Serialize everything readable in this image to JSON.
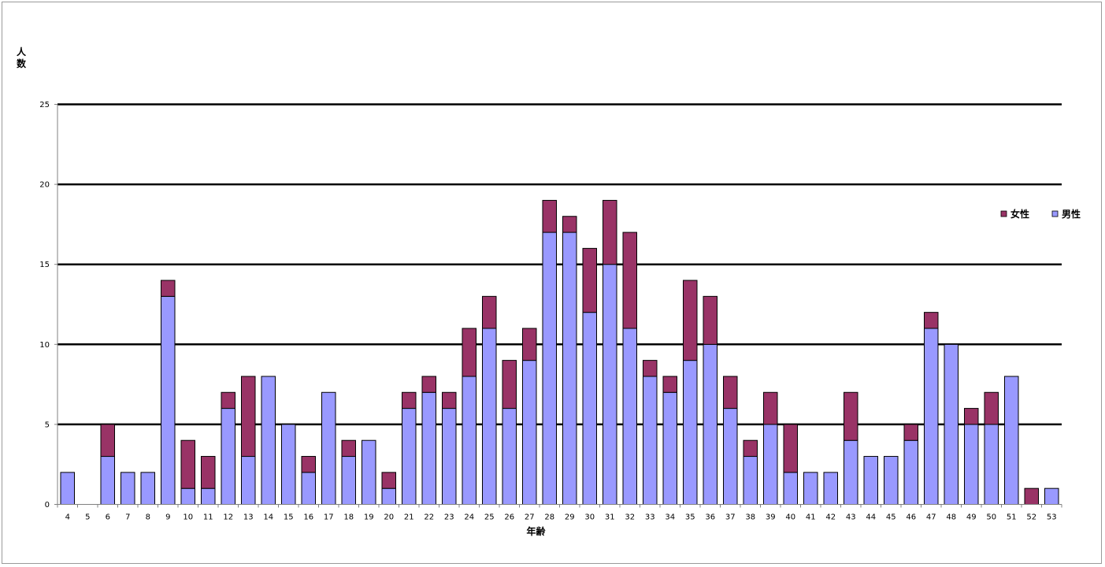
{
  "chart_data": {
    "type": "bar",
    "stacked": true,
    "title": "",
    "xlabel": "年齢",
    "ylabel": "人数",
    "ylim": [
      0,
      25
    ],
    "yticks": [
      0,
      5,
      10,
      15,
      20,
      25
    ],
    "grid": true,
    "legend_position": "right",
    "categories": [
      "4",
      "5",
      "6",
      "7",
      "8",
      "9",
      "10",
      "11",
      "12",
      "13",
      "14",
      "15",
      "16",
      "17",
      "18",
      "19",
      "20",
      "21",
      "22",
      "23",
      "24",
      "25",
      "26",
      "27",
      "28",
      "29",
      "30",
      "31",
      "32",
      "33",
      "34",
      "35",
      "36",
      "37",
      "38",
      "39",
      "40",
      "41",
      "42",
      "43",
      "44",
      "45",
      "46",
      "47",
      "48",
      "49",
      "50",
      "51",
      "52",
      "53"
    ],
    "series": [
      {
        "name": "男性",
        "color": "#9999ff",
        "values": [
          2,
          0,
          3,
          2,
          2,
          13,
          1,
          1,
          6,
          3,
          8,
          5,
          2,
          7,
          3,
          4,
          1,
          6,
          7,
          6,
          8,
          11,
          6,
          9,
          17,
          17,
          12,
          15,
          11,
          8,
          7,
          9,
          10,
          6,
          3,
          5,
          2,
          2,
          2,
          4,
          3,
          3,
          4,
          11,
          10,
          5,
          5,
          8,
          0,
          1
        ]
      },
      {
        "name": "女性",
        "color": "#993366",
        "values": [
          0,
          0,
          2,
          0,
          0,
          1,
          3,
          2,
          1,
          5,
          0,
          0,
          1,
          0,
          1,
          0,
          1,
          1,
          1,
          1,
          3,
          2,
          3,
          2,
          2,
          1,
          4,
          4,
          6,
          1,
          1,
          5,
          3,
          2,
          1,
          2,
          3,
          0,
          0,
          3,
          0,
          0,
          1,
          1,
          0,
          1,
          2,
          0,
          1,
          0
        ]
      }
    ],
    "legend": [
      "女性",
      "男性"
    ]
  }
}
